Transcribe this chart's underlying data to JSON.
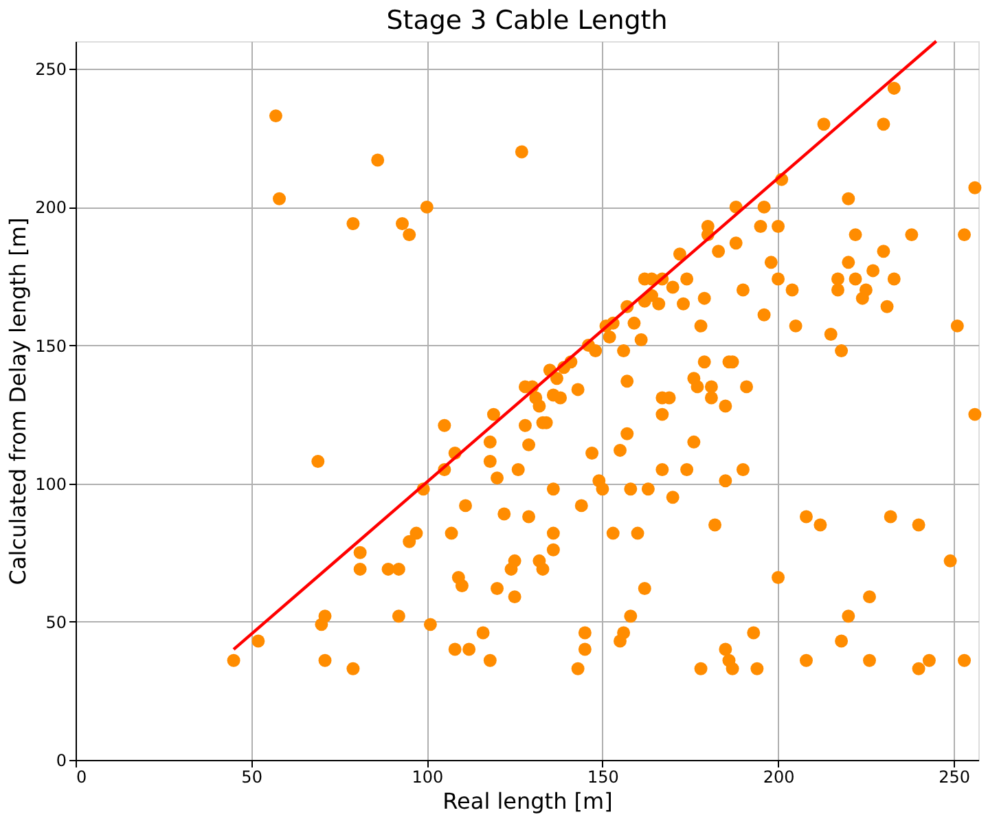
{
  "chart_data": {
    "type": "scatter",
    "title": "Stage 3 Cable Length",
    "xlabel": "Real length [m]",
    "ylabel": "Calculated from Delay length [m]",
    "xlim": [
      0,
      257
    ],
    "ylim": [
      0,
      260
    ],
    "xticks": [
      0,
      50,
      100,
      150,
      200,
      250
    ],
    "yticks": [
      0,
      50,
      100,
      150,
      200,
      250
    ],
    "grid": true,
    "series": [
      {
        "marker": "circle",
        "color": "#ff8c00",
        "x": [
          45,
          52,
          57,
          58,
          69,
          70,
          71,
          71,
          79,
          79,
          81,
          81,
          86,
          89,
          92,
          92,
          93,
          95,
          95,
          97,
          99,
          100,
          101,
          105,
          105,
          107,
          108,
          108,
          109,
          110,
          111,
          112,
          116,
          118,
          118,
          118,
          119,
          120,
          120,
          122,
          124,
          125,
          125,
          126,
          127,
          128,
          128,
          129,
          129,
          130,
          131,
          132,
          132,
          133,
          133,
          134,
          135,
          136,
          136,
          136,
          136,
          137,
          138,
          139,
          141,
          143,
          143,
          144,
          145,
          145,
          146,
          147,
          148,
          149,
          150,
          151,
          152,
          153,
          153,
          155,
          155,
          156,
          156,
          157,
          157,
          157,
          158,
          158,
          159,
          160,
          161,
          162,
          162,
          162,
          163,
          164,
          164,
          166,
          167,
          167,
          167,
          167,
          169,
          170,
          170,
          172,
          173,
          174,
          174,
          176,
          176,
          177,
          178,
          178,
          179,
          179,
          180,
          180,
          181,
          181,
          182,
          183,
          185,
          185,
          185,
          186,
          186,
          187,
          187,
          188,
          188,
          190,
          190,
          191,
          193,
          194,
          195,
          196,
          196,
          198,
          200,
          200,
          201,
          200,
          204,
          205,
          208,
          208,
          212,
          213,
          215,
          217,
          217,
          218,
          218,
          220,
          220,
          220,
          222,
          222,
          224,
          225,
          226,
          226,
          227,
          230,
          230,
          231,
          232,
          233,
          233,
          238,
          240,
          240,
          243,
          249,
          251,
          253,
          253,
          256,
          256
        ],
        "values": [
          36,
          43,
          233,
          203,
          108,
          49,
          52,
          36,
          33,
          194,
          75,
          69,
          217,
          69,
          69,
          52,
          194,
          190,
          79,
          82,
          98,
          200,
          49,
          105,
          121,
          82,
          111,
          40,
          66,
          63,
          92,
          40,
          46,
          36,
          115,
          108,
          125,
          102,
          62,
          89,
          69,
          72,
          59,
          105,
          220,
          135,
          121,
          114,
          88,
          135,
          131,
          128,
          72,
          69,
          122,
          122,
          141,
          132,
          98,
          82,
          76,
          138,
          131,
          142,
          144,
          134,
          33,
          92,
          46,
          40,
          150,
          111,
          148,
          101,
          98,
          157,
          153,
          158,
          82,
          43,
          112,
          46,
          148,
          137,
          164,
          118,
          98,
          52,
          158,
          82,
          152,
          174,
          166,
          62,
          98,
          168,
          174,
          165,
          174,
          131,
          125,
          105,
          131,
          171,
          95,
          183,
          165,
          174,
          105,
          138,
          115,
          135,
          33,
          157,
          167,
          144,
          190,
          193,
          135,
          131,
          85,
          184,
          128,
          101,
          40,
          144,
          36,
          144,
          33,
          200,
          187,
          105,
          170,
          135,
          46,
          33,
          193,
          200,
          161,
          180,
          193,
          174,
          210,
          66,
          170,
          157,
          88,
          36,
          85,
          230,
          154,
          170,
          174,
          43,
          148,
          180,
          203,
          52,
          190,
          174,
          167,
          170,
          59,
          36,
          177,
          230,
          184,
          164,
          88,
          243,
          174,
          190,
          33,
          85,
          36,
          72,
          157,
          190,
          36,
          125,
          207
        ]
      },
      {
        "type": "line",
        "color": "#ff0000",
        "x": [
          45,
          245
        ],
        "values": [
          40,
          260
        ]
      }
    ]
  }
}
